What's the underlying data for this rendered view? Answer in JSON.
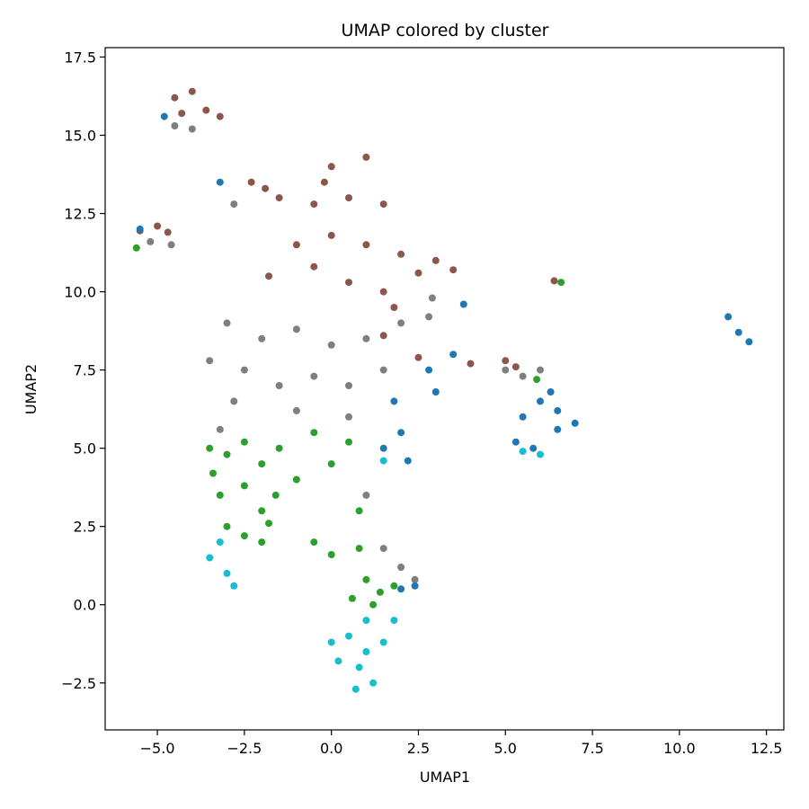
{
  "chart_data": {
    "type": "scatter",
    "title": "UMAP colored by cluster",
    "xlabel": "UMAP1",
    "ylabel": "UMAP2",
    "xlim": [
      -6.5,
      13.0
    ],
    "ylim": [
      -4.0,
      17.8
    ],
    "xticks": [
      -5.0,
      -2.5,
      0.0,
      2.5,
      5.0,
      7.5,
      10.0,
      12.5
    ],
    "xtick_labels": [
      "−5.0",
      "−2.5",
      "0.0",
      "2.5",
      "5.0",
      "7.5",
      "10.0",
      "12.5"
    ],
    "yticks": [
      -2.5,
      0.0,
      2.5,
      5.0,
      7.5,
      10.0,
      12.5,
      15.0,
      17.5
    ],
    "ytick_labels": [
      "−2.5",
      "0.0",
      "2.5",
      "5.0",
      "7.5",
      "10.0",
      "12.5",
      "15.0",
      "17.5"
    ],
    "grid": false,
    "legend": "none",
    "series": [
      {
        "color": "#8c564b",
        "points": [
          [
            -4.5,
            16.2
          ],
          [
            -4.0,
            16.4
          ],
          [
            -3.6,
            15.8
          ],
          [
            -3.2,
            15.6
          ],
          [
            -4.3,
            15.7
          ],
          [
            -5.5,
            11.95
          ],
          [
            -5.0,
            12.1
          ],
          [
            -4.7,
            11.9
          ],
          [
            -2.3,
            13.5
          ],
          [
            -1.9,
            13.3
          ],
          [
            -1.5,
            13.0
          ],
          [
            -0.5,
            12.8
          ],
          [
            0.5,
            13.0
          ],
          [
            1.5,
            12.8
          ],
          [
            0.0,
            11.8
          ],
          [
            1.0,
            11.5
          ],
          [
            2.0,
            11.2
          ],
          [
            3.0,
            11.0
          ],
          [
            -1.0,
            11.5
          ],
          [
            -0.5,
            10.8
          ],
          [
            0.5,
            10.3
          ],
          [
            1.5,
            10.0
          ],
          [
            -1.8,
            10.5
          ],
          [
            0.0,
            14.0
          ],
          [
            1.0,
            14.3
          ],
          [
            -0.2,
            13.5
          ],
          [
            2.5,
            10.6
          ],
          [
            3.5,
            10.7
          ],
          [
            1.8,
            9.5
          ],
          [
            1.5,
            8.6
          ],
          [
            2.5,
            7.9
          ],
          [
            4.0,
            7.7
          ],
          [
            5.0,
            7.8
          ],
          [
            5.3,
            7.6
          ],
          [
            6.4,
            10.35
          ]
        ]
      },
      {
        "color": "#7f7f7f",
        "points": [
          [
            -4.5,
            15.3
          ],
          [
            -4.0,
            15.2
          ],
          [
            -5.2,
            11.6
          ],
          [
            -4.6,
            11.5
          ],
          [
            -2.8,
            12.8
          ],
          [
            -3.0,
            9.0
          ],
          [
            -2.0,
            8.5
          ],
          [
            -1.0,
            8.8
          ],
          [
            0.0,
            8.3
          ],
          [
            1.0,
            8.5
          ],
          [
            -2.5,
            7.5
          ],
          [
            -1.5,
            7.0
          ],
          [
            -0.5,
            7.3
          ],
          [
            0.5,
            7.0
          ],
          [
            1.5,
            7.5
          ],
          [
            -3.5,
            7.8
          ],
          [
            -2.8,
            6.5
          ],
          [
            -1.0,
            6.2
          ],
          [
            0.5,
            6.0
          ],
          [
            2.0,
            9.0
          ],
          [
            2.9,
            9.8
          ],
          [
            2.8,
            9.2
          ],
          [
            5.0,
            7.5
          ],
          [
            5.5,
            7.3
          ],
          [
            6.0,
            7.5
          ],
          [
            1.0,
            3.5
          ],
          [
            1.5,
            1.8
          ],
          [
            2.0,
            1.2
          ],
          [
            2.4,
            0.8
          ],
          [
            -3.2,
            5.6
          ]
        ]
      },
      {
        "color": "#2ca02c",
        "points": [
          [
            -3.5,
            5.0
          ],
          [
            -3.0,
            4.8
          ],
          [
            -2.5,
            5.2
          ],
          [
            -2.0,
            4.5
          ],
          [
            -1.5,
            5.0
          ],
          [
            -3.2,
            3.5
          ],
          [
            -2.5,
            3.8
          ],
          [
            -2.0,
            3.0
          ],
          [
            -1.6,
            3.5
          ],
          [
            -3.0,
            2.5
          ],
          [
            -2.5,
            2.2
          ],
          [
            -2.0,
            2.0
          ],
          [
            -1.8,
            2.6
          ],
          [
            -3.4,
            4.2
          ],
          [
            -0.5,
            5.5
          ],
          [
            0.5,
            5.2
          ],
          [
            0.0,
            4.5
          ],
          [
            -1.0,
            4.0
          ],
          [
            0.8,
            3.0
          ],
          [
            -0.5,
            2.0
          ],
          [
            0.0,
            1.6
          ],
          [
            0.8,
            1.8
          ],
          [
            1.0,
            0.8
          ],
          [
            1.4,
            0.4
          ],
          [
            1.8,
            0.6
          ],
          [
            1.2,
            0.0
          ],
          [
            0.6,
            0.2
          ],
          [
            -5.6,
            11.4
          ],
          [
            6.6,
            10.3
          ],
          [
            5.9,
            7.2
          ]
        ]
      },
      {
        "color": "#1f77b4",
        "points": [
          [
            6.0,
            6.5
          ],
          [
            6.5,
            6.2
          ],
          [
            7.0,
            5.8
          ],
          [
            6.3,
            6.8
          ],
          [
            5.5,
            6.0
          ],
          [
            5.3,
            5.2
          ],
          [
            5.8,
            5.0
          ],
          [
            6.5,
            5.6
          ],
          [
            1.8,
            6.5
          ],
          [
            2.0,
            5.5
          ],
          [
            1.5,
            5.0
          ],
          [
            2.2,
            4.6
          ],
          [
            2.8,
            7.5
          ],
          [
            3.0,
            6.8
          ],
          [
            3.5,
            8.0
          ],
          [
            2.0,
            0.5
          ],
          [
            2.4,
            0.6
          ],
          [
            11.4,
            9.2
          ],
          [
            11.7,
            8.7
          ],
          [
            12.0,
            8.4
          ],
          [
            -3.2,
            13.5
          ],
          [
            -5.5,
            12.0
          ],
          [
            -4.8,
            15.6
          ],
          [
            3.8,
            9.6
          ]
        ]
      },
      {
        "color": "#17becf",
        "points": [
          [
            0.5,
            -1.0
          ],
          [
            1.0,
            -1.5
          ],
          [
            1.5,
            -1.2
          ],
          [
            0.8,
            -2.0
          ],
          [
            1.2,
            -2.5
          ],
          [
            0.2,
            -1.8
          ],
          [
            1.8,
            -0.5
          ],
          [
            0.0,
            -1.2
          ],
          [
            1.0,
            -0.5
          ],
          [
            0.7,
            -2.7
          ],
          [
            -3.5,
            1.5
          ],
          [
            -3.0,
            1.0
          ],
          [
            -2.8,
            0.6
          ],
          [
            -3.2,
            2.0
          ],
          [
            1.5,
            4.6
          ],
          [
            5.5,
            4.9
          ],
          [
            6.0,
            4.8
          ]
        ]
      }
    ]
  }
}
